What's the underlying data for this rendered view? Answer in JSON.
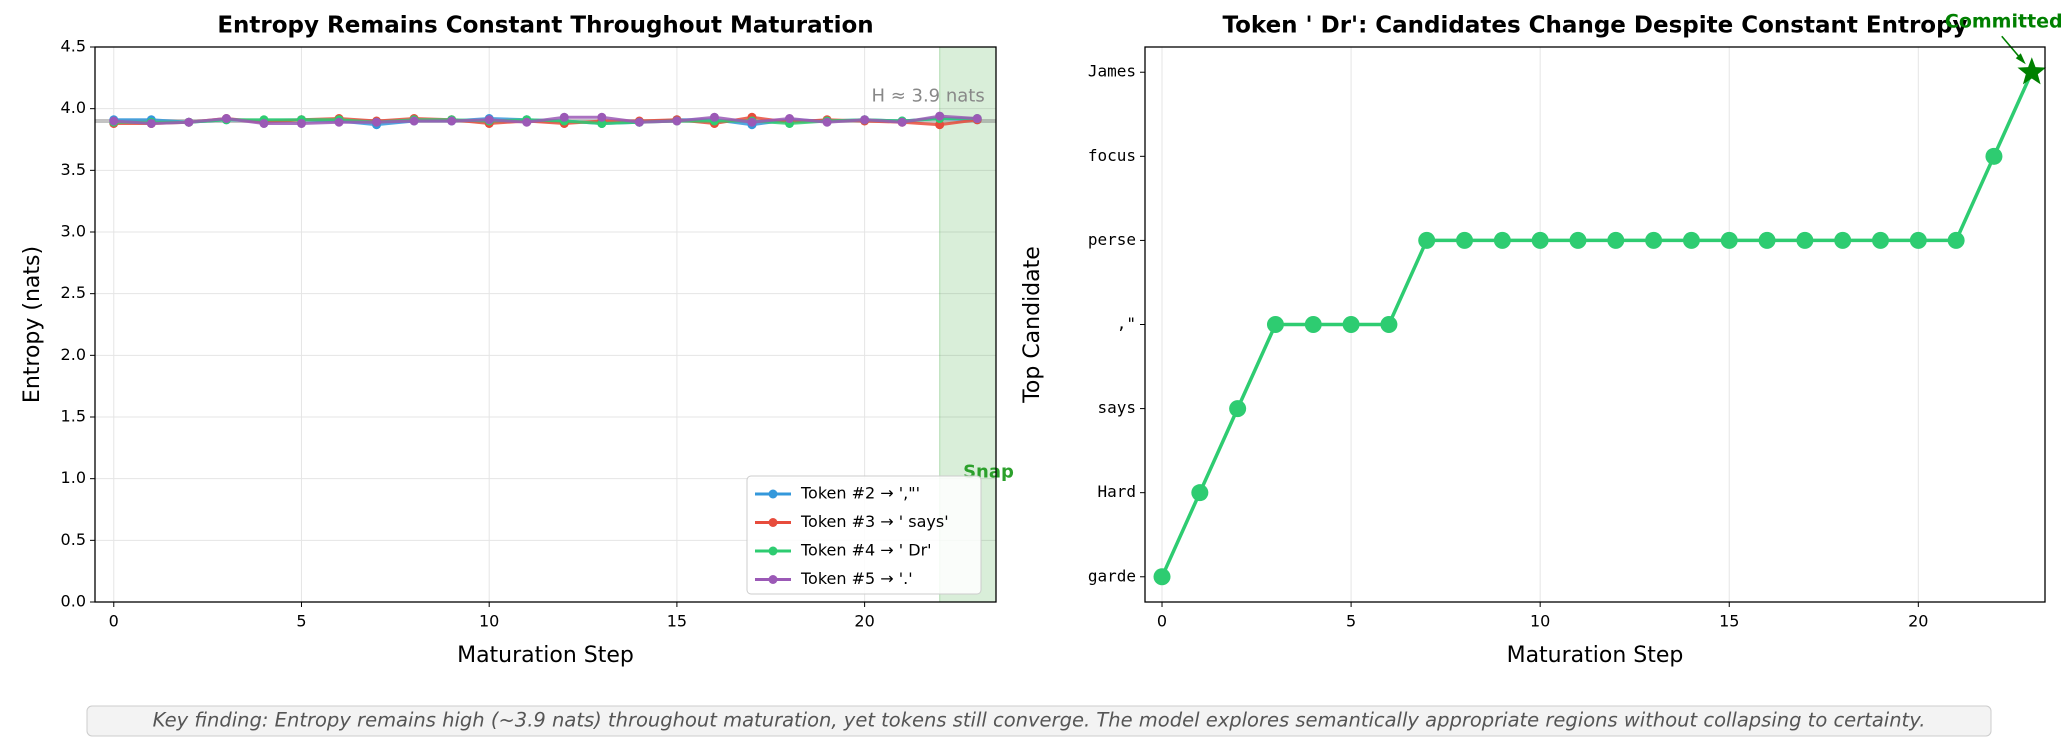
{
  "chart_data": [
    {
      "type": "line",
      "title": "Entropy Remains Constant Throughout Maturation",
      "x_label": "Maturation Step",
      "y_label": "Entropy (nats)",
      "x": [
        0,
        1,
        2,
        3,
        4,
        5,
        6,
        7,
        8,
        9,
        10,
        11,
        12,
        13,
        14,
        15,
        16,
        17,
        18,
        19,
        20,
        21,
        22,
        23
      ],
      "series": [
        {
          "name": "Token #2 → ',\"'",
          "color": "#3498db",
          "values": [
            3.91,
            3.91,
            3.89,
            3.91,
            3.9,
            3.91,
            3.9,
            3.87,
            3.9,
            3.9,
            3.92,
            3.91,
            3.9,
            3.88,
            3.89,
            3.91,
            3.91,
            3.87,
            3.91,
            3.9,
            3.91,
            3.9,
            3.92,
            3.91
          ]
        },
        {
          "name": "Token #3 → ' says'",
          "color": "#e74c3c",
          "values": [
            3.88,
            3.88,
            3.89,
            3.92,
            3.89,
            3.91,
            3.92,
            3.9,
            3.92,
            3.91,
            3.88,
            3.9,
            3.88,
            3.9,
            3.9,
            3.91,
            3.88,
            3.93,
            3.89,
            3.91,
            3.9,
            3.89,
            3.87,
            3.91
          ]
        },
        {
          "name": "Token #4 → ' Dr'",
          "color": "#2ecc71",
          "values": [
            3.89,
            3.89,
            3.89,
            3.91,
            3.91,
            3.91,
            3.91,
            3.89,
            3.91,
            3.91,
            3.9,
            3.91,
            3.9,
            3.88,
            3.89,
            3.9,
            3.9,
            3.9,
            3.88,
            3.9,
            3.91,
            3.9,
            3.92,
            3.92
          ]
        },
        {
          "name": "Token #5 → '.'",
          "color": "#9b59b6",
          "values": [
            3.9,
            3.88,
            3.89,
            3.92,
            3.88,
            3.88,
            3.89,
            3.89,
            3.9,
            3.9,
            3.91,
            3.89,
            3.93,
            3.93,
            3.89,
            3.9,
            3.93,
            3.89,
            3.92,
            3.89,
            3.91,
            3.89,
            3.94,
            3.92
          ]
        }
      ],
      "xlim": [
        -0.5,
        23.5
      ],
      "ylim": [
        0,
        4.5
      ],
      "xticks": [
        0,
        5,
        10,
        15,
        20
      ],
      "yticks": [
        {
          "value": 0,
          "label": "0.0"
        },
        {
          "value": 0.5,
          "label": "0.5"
        },
        {
          "value": 1,
          "label": "1.0"
        },
        {
          "value": 1.5,
          "label": "1.5"
        },
        {
          "value": 2,
          "label": "2.0"
        },
        {
          "value": 2.5,
          "label": "2.5"
        },
        {
          "value": 3,
          "label": "3.0"
        },
        {
          "value": 3.5,
          "label": "3.5"
        },
        {
          "value": 4,
          "label": "4.0"
        },
        {
          "value": 4.5,
          "label": "4.5"
        }
      ],
      "grid": true,
      "legend": "lower right",
      "reference_line": {
        "value": 3.9,
        "label": "H ≈ 3.9 nats",
        "label_x": 23.2,
        "label_y": 4.1,
        "color": "#888888"
      },
      "shade_span": {
        "from": 22,
        "to": 23.5,
        "label": "Snap",
        "label_x": 23.3,
        "label_y": 1.05,
        "color": "#2ca02c"
      }
    },
    {
      "type": "category-line",
      "title": "Token ' Dr': Candidates Change Despite Constant Entropy",
      "x_label": "Maturation Step",
      "y_label": "Top Candidate",
      "x": [
        0,
        1,
        2,
        3,
        4,
        5,
        6,
        7,
        8,
        9,
        10,
        11,
        12,
        13,
        14,
        15,
        16,
        17,
        18,
        19,
        20,
        21,
        22,
        23
      ],
      "y_categories": [
        " garde",
        " Hard",
        " says",
        ",\"",
        " perse",
        " focus",
        " James"
      ],
      "values": [
        " garde",
        " Hard",
        " says",
        ",\"",
        ",\"",
        ",\"",
        ",\"",
        " perse",
        " perse",
        " perse",
        " perse",
        " perse",
        " perse",
        " perse",
        " perse",
        " perse",
        " perse",
        " perse",
        " perse",
        " perse",
        " perse",
        " perse",
        " focus",
        " James"
      ],
      "color": "#2ecc71",
      "xlim": [
        -0.45,
        23.35
      ],
      "xticks": [
        0,
        5,
        10,
        15,
        20
      ],
      "grid": true,
      "highlight": {
        "label": "Committed",
        "color": "#008000"
      }
    }
  ],
  "footnote": "Key finding: Entropy remains high (~3.9 nats) throughout maturation, yet tokens still converge. The model explores semantically appropriate regions without collapsing to certainty."
}
